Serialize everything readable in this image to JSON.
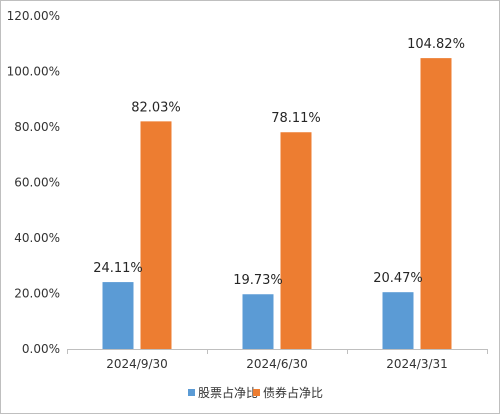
{
  "chart_data": {
    "type": "bar",
    "categories": [
      "2024/9/30",
      "2024/6/30",
      "2024/3/31"
    ],
    "series": [
      {
        "name": "股票占净比",
        "values": [
          24.11,
          19.73,
          20.47
        ],
        "labels": [
          "24.11%",
          "19.73%",
          "20.47%"
        ],
        "color": "#5b9bd5"
      },
      {
        "name": "债券占净比",
        "values": [
          82.03,
          78.11,
          104.82
        ],
        "labels": [
          "82.03%",
          "78.11%",
          "104.82%"
        ],
        "color": "#ed7d31"
      }
    ],
    "ylim": [
      0,
      120
    ],
    "yticks": [
      "0.00%",
      "20.00%",
      "40.00%",
      "60.00%",
      "80.00%",
      "100.00%",
      "120.00%"
    ],
    "grid": false,
    "legend_position": "bottom"
  }
}
